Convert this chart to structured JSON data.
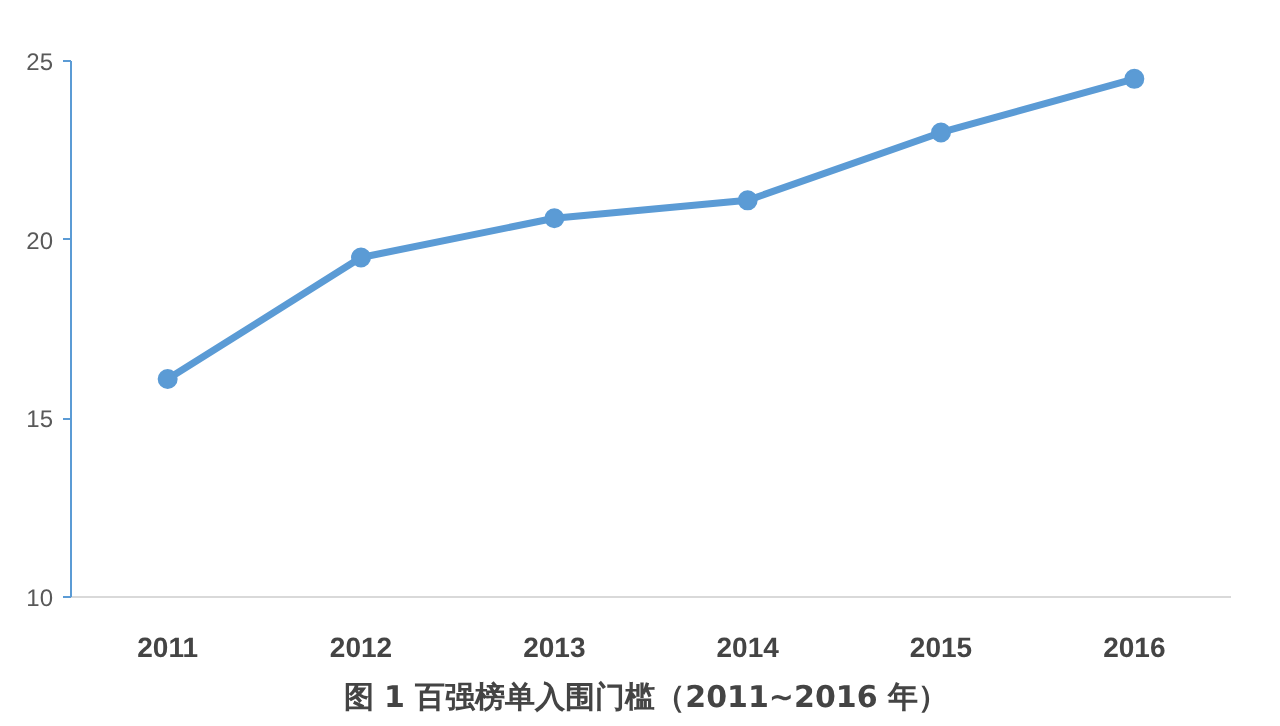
{
  "chart_data": {
    "type": "line",
    "title": "图 1  百强榜单入围门槛（2011~2016 年）",
    "categories": [
      "2011",
      "2012",
      "2013",
      "2014",
      "2015",
      "2016"
    ],
    "series": [
      {
        "color": "#5b9bd5",
        "values": [
          16.1,
          19.5,
          20.6,
          21.1,
          23.0,
          24.5
        ]
      }
    ],
    "ylim": [
      10,
      25
    ],
    "yticks": [
      10,
      15,
      20,
      25
    ],
    "grid": false,
    "marker": "circle",
    "line_style": "solid"
  }
}
